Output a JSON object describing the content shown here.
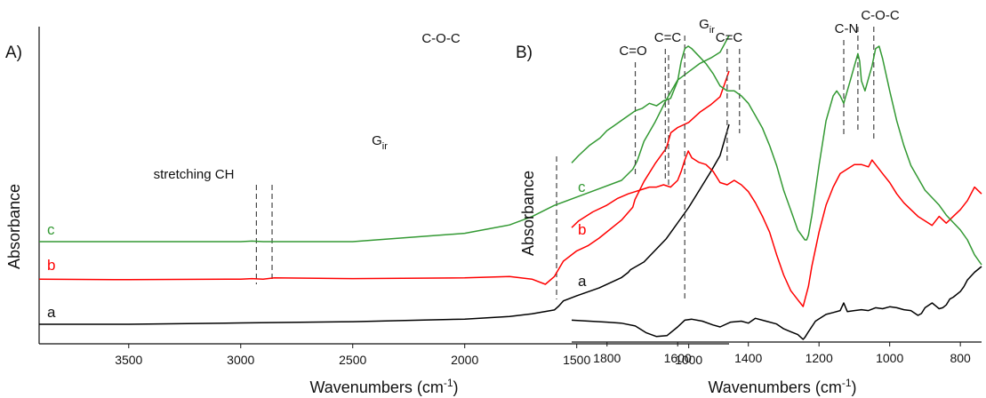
{
  "chart_data": [
    {
      "type": "line",
      "panel_label": "A)",
      "xlabel_main": "Wavenumbers (cm",
      "xlabel_sup": "-1",
      "xlabel_end": ")",
      "ylabel": "Absorbance",
      "xlim": [
        3900,
        820
      ],
      "ylim": [
        0,
        1
      ],
      "x_reversed": true,
      "xticks": [
        3500,
        3000,
        2500,
        2000,
        1500,
        1000
      ],
      "grid": false,
      "series": [
        {
          "name": "a",
          "color": "#000000",
          "x": [
            3900,
            3500,
            3000,
            2500,
            2000,
            1800,
            1700,
            1600,
            1580,
            1560,
            1500,
            1400,
            1300,
            1270,
            1260,
            1200,
            1100,
            1050,
            1000,
            950,
            900,
            860,
            840,
            820
          ],
          "y": [
            0.03,
            0.03,
            0.035,
            0.04,
            0.05,
            0.06,
            0.07,
            0.085,
            0.1,
            0.12,
            0.14,
            0.17,
            0.21,
            0.23,
            0.24,
            0.27,
            0.36,
            0.42,
            0.48,
            0.55,
            0.62,
            0.68,
            0.74,
            0.8
          ]
        },
        {
          "name": "b",
          "color": "#ff0000",
          "x": [
            3900,
            3500,
            3000,
            2950,
            2900,
            2850,
            2500,
            2000,
            1800,
            1700,
            1640,
            1600,
            1560,
            1500,
            1450,
            1400,
            1300,
            1250,
            1240,
            1200,
            1150,
            1100,
            1080,
            1050,
            1000,
            950,
            900,
            860,
            840,
            820
          ],
          "y": [
            0.17,
            0.168,
            0.17,
            0.172,
            0.17,
            0.175,
            0.172,
            0.175,
            0.18,
            0.17,
            0.15,
            0.18,
            0.24,
            0.28,
            0.3,
            0.33,
            0.4,
            0.45,
            0.48,
            0.55,
            0.62,
            0.68,
            0.74,
            0.76,
            0.78,
            0.82,
            0.85,
            0.88,
            0.93,
            0.98
          ]
        },
        {
          "name": "c",
          "color": "#339933",
          "x": [
            3900,
            3500,
            3000,
            2950,
            2900,
            2800,
            2500,
            2000,
            1800,
            1700,
            1600,
            1500,
            1400,
            1300,
            1250,
            1230,
            1200,
            1150,
            1100,
            1050,
            1000,
            950,
            900,
            860,
            840,
            820
          ],
          "y": [
            0.29,
            0.29,
            0.29,
            0.292,
            0.29,
            0.29,
            0.29,
            0.32,
            0.35,
            0.38,
            0.42,
            0.45,
            0.48,
            0.51,
            0.55,
            0.58,
            0.65,
            0.72,
            0.8,
            0.87,
            0.9,
            0.93,
            0.95,
            0.97,
            1.0,
            1.03
          ]
        }
      ],
      "annotations": [
        {
          "text": "stretching CH",
          "x": [
            2930,
            2860
          ]
        },
        {
          "text_main": "G",
          "text_sub": "ir",
          "x": [
            1590
          ]
        },
        {
          "text": "C-O-C",
          "x": [
            1090
          ]
        }
      ]
    },
    {
      "type": "line",
      "panel_label": "B)",
      "xlabel_main": "Wavenumbers (cm",
      "xlabel_sup": "-1",
      "xlabel_end": ")",
      "ylabel": "Absorbance",
      "xlim": [
        1900,
        740
      ],
      "ylim": [
        0,
        1
      ],
      "x_reversed": true,
      "xticks": [
        1800,
        1600,
        1400,
        1200,
        1000,
        800
      ],
      "grid": false,
      "series": [
        {
          "name": "a",
          "color": "#000000",
          "x": [
            1900,
            1850,
            1800,
            1760,
            1720,
            1690,
            1660,
            1630,
            1600,
            1580,
            1560,
            1530,
            1500,
            1480,
            1450,
            1420,
            1400,
            1380,
            1350,
            1320,
            1300,
            1280,
            1260,
            1245,
            1240,
            1230,
            1210,
            1180,
            1160,
            1140,
            1130,
            1120,
            1100,
            1080,
            1060,
            1040,
            1020,
            1000,
            980,
            960,
            940,
            920,
            910,
            900,
            880,
            870,
            860,
            850,
            840,
            830,
            820,
            800,
            790,
            780,
            760,
            740
          ],
          "y": [
            0.2,
            0.19,
            0.18,
            0.17,
            0.14,
            0.07,
            0.03,
            0.04,
            0.13,
            0.2,
            0.21,
            0.19,
            0.15,
            0.13,
            0.18,
            0.19,
            0.17,
            0.22,
            0.19,
            0.16,
            0.11,
            0.08,
            0.05,
            0.0,
            0.02,
            0.08,
            0.19,
            0.26,
            0.28,
            0.3,
            0.38,
            0.29,
            0.3,
            0.31,
            0.3,
            0.33,
            0.32,
            0.34,
            0.33,
            0.31,
            0.3,
            0.25,
            0.27,
            0.33,
            0.38,
            0.35,
            0.32,
            0.33,
            0.36,
            0.42,
            0.44,
            0.5,
            0.55,
            0.62,
            0.7,
            0.76
          ]
        },
        {
          "name": "b",
          "color": "#ff0000",
          "x": [
            1900,
            1880,
            1840,
            1800,
            1770,
            1740,
            1720,
            1700,
            1680,
            1660,
            1640,
            1620,
            1600,
            1590,
            1580,
            1570,
            1560,
            1540,
            1520,
            1500,
            1480,
            1460,
            1440,
            1420,
            1400,
            1380,
            1360,
            1340,
            1320,
            1300,
            1280,
            1260,
            1250,
            1245,
            1240,
            1230,
            1220,
            1200,
            1180,
            1160,
            1140,
            1120,
            1100,
            1080,
            1060,
            1050,
            1040,
            1020,
            1000,
            980,
            960,
            940,
            920,
            900,
            880,
            860,
            840,
            820,
            800,
            780,
            760,
            740
          ],
          "y": [
            0.42,
            0.45,
            0.49,
            0.52,
            0.55,
            0.57,
            0.58,
            0.59,
            0.6,
            0.6,
            0.61,
            0.6,
            0.63,
            0.67,
            0.72,
            0.76,
            0.73,
            0.71,
            0.7,
            0.67,
            0.62,
            0.61,
            0.63,
            0.61,
            0.58,
            0.53,
            0.47,
            0.4,
            0.3,
            0.21,
            0.14,
            0.1,
            0.08,
            0.07,
            0.1,
            0.16,
            0.25,
            0.4,
            0.52,
            0.6,
            0.66,
            0.68,
            0.7,
            0.7,
            0.69,
            0.72,
            0.7,
            0.66,
            0.62,
            0.57,
            0.53,
            0.5,
            0.47,
            0.45,
            0.43,
            0.47,
            0.44,
            0.47,
            0.5,
            0.54,
            0.6,
            0.57
          ]
        },
        {
          "name": "c",
          "color": "#339933",
          "x": [
            1900,
            1880,
            1850,
            1820,
            1800,
            1780,
            1760,
            1740,
            1720,
            1700,
            1680,
            1660,
            1640,
            1620,
            1600,
            1590,
            1580,
            1570,
            1560,
            1540,
            1520,
            1500,
            1480,
            1460,
            1440,
            1420,
            1400,
            1380,
            1360,
            1340,
            1320,
            1300,
            1280,
            1260,
            1240,
            1235,
            1230,
            1220,
            1200,
            1180,
            1160,
            1150,
            1140,
            1130,
            1120,
            1110,
            1100,
            1090,
            1085,
            1080,
            1070,
            1060,
            1050,
            1040,
            1030,
            1020,
            1000,
            980,
            960,
            940,
            920,
            900,
            880,
            860,
            840,
            820,
            800,
            780,
            760,
            740
          ],
          "y": [
            0.51,
            0.54,
            0.58,
            0.61,
            0.64,
            0.66,
            0.68,
            0.7,
            0.72,
            0.73,
            0.75,
            0.74,
            0.76,
            0.77,
            0.84,
            0.92,
            0.97,
            0.98,
            0.97,
            0.94,
            0.91,
            0.87,
            0.82,
            0.8,
            0.8,
            0.78,
            0.75,
            0.7,
            0.65,
            0.58,
            0.5,
            0.4,
            0.32,
            0.24,
            0.2,
            0.2,
            0.22,
            0.3,
            0.5,
            0.68,
            0.78,
            0.8,
            0.78,
            0.75,
            0.8,
            0.85,
            0.9,
            0.95,
            0.92,
            0.84,
            0.8,
            0.85,
            0.9,
            0.97,
            0.98,
            0.93,
            0.8,
            0.68,
            0.58,
            0.5,
            0.45,
            0.4,
            0.37,
            0.34,
            0.3,
            0.27,
            0.24,
            0.2,
            0.14,
            0.1
          ]
        }
      ],
      "annotations": [
        {
          "text": "C=O",
          "x": [
            1720
          ]
        },
        {
          "text": "C=C",
          "x": [
            1635
          ]
        },
        {
          "text_main": "G",
          "text_sub": "ir",
          "x": [
            1580
          ]
        },
        {
          "text": "C=C",
          "x": [
            1460,
            1425
          ]
        },
        {
          "text": "C-N",
          "x": [
            1130
          ]
        },
        {
          "text": "C-O-C",
          "x": [
            1090,
            1045
          ]
        }
      ]
    }
  ]
}
